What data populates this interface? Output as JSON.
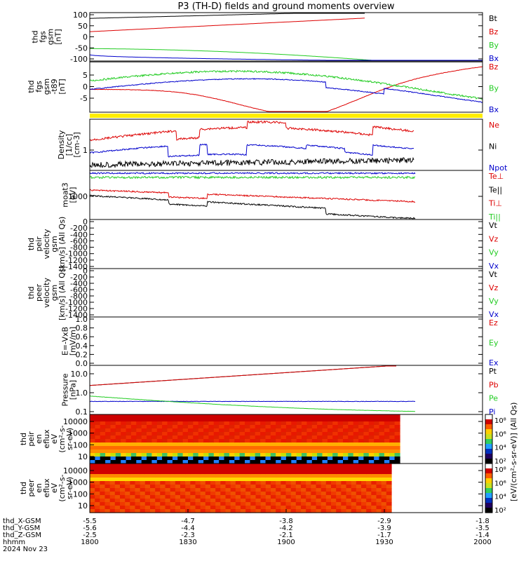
{
  "title": "P3 (TH-D) fields and ground moments overview",
  "time_axis": {
    "ticks": [
      "1800",
      "1830",
      "1900",
      "1930",
      "2000"
    ],
    "rows": [
      {
        "label": "thd_X-GSM",
        "values": [
          "-5.5",
          "-4.7",
          "-3.8",
          "-2.9",
          "-1.8"
        ]
      },
      {
        "label": "thd_Y-GSM",
        "values": [
          "-5.6",
          "-4.4",
          "-4.2",
          "-3.9",
          "-3.5"
        ]
      },
      {
        "label": "thd_Z-GSM",
        "values": [
          "-2.5",
          "-2.3",
          "-2.1",
          "-1.7",
          "-1.4"
        ]
      },
      {
        "label": "hhmm",
        "values": []
      }
    ],
    "date": "2024 Nov 23"
  },
  "colorbar_label": "[eV/(cm^2-s-sr-eV)] (All Qs)",
  "colors": {
    "black": "#000000",
    "red": "#dd0000",
    "green": "#22cc22",
    "blue": "#0000cc",
    "yellow": "#ffee00"
  },
  "panels": [
    {
      "id": "p1",
      "ylabel": [
        "thd",
        "fgs",
        "gsm",
        "[nT]"
      ],
      "ticks": [
        "100",
        "50",
        "0",
        "-50",
        "-100"
      ],
      "legend": [
        {
          "text": "Bt",
          "color": "#000000"
        },
        {
          "text": "Bz",
          "color": "#dd0000"
        },
        {
          "text": "By",
          "color": "#22cc22"
        },
        {
          "text": "Bx",
          "color": "#0000cc"
        }
      ]
    },
    {
      "id": "p2",
      "ylabel": [
        "thd",
        "fgs",
        "gsm",
        "-t89",
        "[nT]"
      ],
      "ticks": [
        "5",
        "0",
        "-5"
      ],
      "legend": [
        {
          "text": "Bz",
          "color": "#dd0000"
        },
        {
          "text": "By",
          "color": "#22cc22"
        },
        {
          "text": "Bx",
          "color": "#0000cc"
        }
      ]
    },
    {
      "id": "p3",
      "ylabel": [
        "Density",
        "[1/cc]",
        "[cm-3]"
      ],
      "ticks": [
        "1"
      ],
      "legend": [
        {
          "text": "Ne",
          "color": "#dd0000"
        },
        {
          "text": "Ni",
          "color": "#000000"
        },
        {
          "text": "Npot",
          "color": "#0000cc"
        }
      ]
    },
    {
      "id": "p4",
      "ylabel": [
        "moat3",
        "[eV]"
      ],
      "ticks": [
        "1000"
      ],
      "legend": [
        {
          "text": "Te⊥",
          "color": "#dd0000"
        },
        {
          "text": "Te||",
          "color": "#000000"
        },
        {
          "text": "Ti⊥",
          "color": "#dd0000"
        },
        {
          "text": "Ti||",
          "color": "#22cc22"
        }
      ]
    },
    {
      "id": "p5",
      "ylabel": [
        "thd",
        "peir",
        "velocity",
        "gsm",
        "[km/s] (All Qs)"
      ],
      "ticks": [
        "0",
        "-200",
        "-400",
        "-600",
        "-800",
        "-1000",
        "-1200",
        "-1400"
      ],
      "legend": [
        {
          "text": "Vt",
          "color": "#000000"
        },
        {
          "text": "Vz",
          "color": "#dd0000"
        },
        {
          "text": "Vy",
          "color": "#22cc22"
        },
        {
          "text": "Vx",
          "color": "#0000cc"
        }
      ]
    },
    {
      "id": "p6",
      "ylabel": [
        "thd",
        "peer",
        "velocity",
        "gsm",
        "[km/s] (All Qs)"
      ],
      "ticks": [
        "0",
        "-200",
        "-400",
        "-600",
        "-800",
        "-1000",
        "-1200",
        "-1400"
      ],
      "legend": [
        {
          "text": "Vt",
          "color": "#000000"
        },
        {
          "text": "Vz",
          "color": "#dd0000"
        },
        {
          "text": "Vy",
          "color": "#22cc22"
        },
        {
          "text": "Vx",
          "color": "#0000cc"
        }
      ]
    },
    {
      "id": "p7",
      "ylabel": [
        "E=-VxB",
        "[mV/m]"
      ],
      "ticks": [
        "1.0",
        "0.8",
        "0.6",
        "0.4",
        "0.2",
        "0.0"
      ],
      "legend": [
        {
          "text": "Ez",
          "color": "#dd0000"
        },
        {
          "text": "Ey",
          "color": "#22cc22"
        },
        {
          "text": "Ex",
          "color": "#0000cc"
        }
      ]
    },
    {
      "id": "p8",
      "ylabel": [
        "Pressure",
        "[nPa]"
      ],
      "ticks": [
        "10.0",
        "1.0",
        "0.1"
      ],
      "legend": [
        {
          "text": "Pt",
          "color": "#000000"
        },
        {
          "text": "Pb",
          "color": "#dd0000"
        },
        {
          "text": "Pe",
          "color": "#22cc22"
        },
        {
          "text": "Pi",
          "color": "#0000cc"
        }
      ]
    },
    {
      "id": "p9",
      "ylabel": [
        "thd",
        "peir",
        "en",
        "eflux",
        "eV",
        "(cm^2-s-",
        "sr-eV)"
      ],
      "ticks": [
        "10000",
        "1000",
        "100",
        "10"
      ],
      "cbar_ticks": [
        "10^8",
        "10^6",
        "10^4",
        "10^2"
      ]
    },
    {
      "id": "p10",
      "ylabel": [
        "thd",
        "peer",
        "en",
        "eflux",
        "eV",
        "(cm^2-s-",
        "sr-eV)"
      ],
      "ticks": [
        "10000",
        "1000",
        "100",
        "10"
      ],
      "cbar_ticks": [
        "10^8",
        "10^6",
        "10^4",
        "10^2"
      ]
    }
  ],
  "chart_data": {
    "type": "line",
    "title": "P3 (TH-D) fields and ground moments overview",
    "x_ticks": [
      "1800",
      "1830",
      "1900",
      "1930",
      "2000"
    ],
    "series": [
      {
        "panel": "p1",
        "name": "Bt",
        "x": [
          "1800",
          "1830",
          "1900",
          "1930",
          "2000"
        ],
        "values": [
          85,
          95,
          105,
          115,
          120
        ]
      },
      {
        "panel": "p1",
        "name": "Bz",
        "x": [
          "1800",
          "1830",
          "1900",
          "1930",
          "2000"
        ],
        "values": [
          30,
          50,
          75,
          105,
          120
        ]
      },
      {
        "panel": "p1",
        "name": "By",
        "x": [
          "1800",
          "1830",
          "1900",
          "1930",
          "2000"
        ],
        "values": [
          -40,
          -55,
          -75,
          -95,
          -110
        ]
      },
      {
        "panel": "p1",
        "name": "Bx",
        "x": [
          "1800",
          "1830",
          "1900",
          "1930",
          "2000"
        ],
        "values": [
          -65,
          -80,
          -90,
          -95,
          -95
        ]
      },
      {
        "panel": "p2",
        "name": "Bz",
        "x": [
          "1800",
          "1830",
          "1900",
          "1930",
          "2000"
        ],
        "values": [
          0,
          -2,
          -8,
          -2,
          6
        ]
      },
      {
        "panel": "p2",
        "name": "By",
        "x": [
          "1800",
          "1830",
          "1900",
          "1930",
          "2000"
        ],
        "values": [
          3,
          6,
          3,
          2,
          -3
        ]
      },
      {
        "panel": "p2",
        "name": "Bx",
        "x": [
          "1800",
          "1830",
          "1900",
          "1930",
          "2000"
        ],
        "values": [
          0,
          4,
          3,
          0,
          -3
        ]
      },
      {
        "panel": "p3",
        "name": "Ne",
        "x": [
          "1800",
          "1830",
          "1900",
          "1930"
        ],
        "values": [
          2,
          4,
          2.5,
          5
        ]
      },
      {
        "panel": "p3",
        "name": "Ni",
        "x": [
          "1800",
          "1830",
          "1900",
          "1930"
        ],
        "values": [
          0.5,
          0.6,
          0.7,
          0.7
        ]
      },
      {
        "panel": "p3",
        "name": "Npot",
        "x": [
          "1800",
          "1830",
          "1900",
          "1930"
        ],
        "values": [
          1,
          2,
          1,
          3
        ]
      },
      {
        "panel": "p8",
        "name": "Pt",
        "x": [
          "1800",
          "1830",
          "1900",
          "1930"
        ],
        "values": [
          2.5,
          5,
          10,
          20
        ]
      },
      {
        "panel": "p8",
        "name": "Pb",
        "x": [
          "1800",
          "1830",
          "1900",
          "1930"
        ],
        "values": [
          2.5,
          5,
          10,
          20
        ]
      },
      {
        "panel": "p8",
        "name": "Pe",
        "x": [
          "1800",
          "1830",
          "1900",
          "1930"
        ],
        "values": [
          0.6,
          0.2,
          0.1,
          0.1
        ]
      },
      {
        "panel": "p8",
        "name": "Pi",
        "x": [
          "1800",
          "1830",
          "1900",
          "1930"
        ],
        "values": [
          0.35,
          0.35,
          0.35,
          0.38
        ]
      }
    ]
  }
}
